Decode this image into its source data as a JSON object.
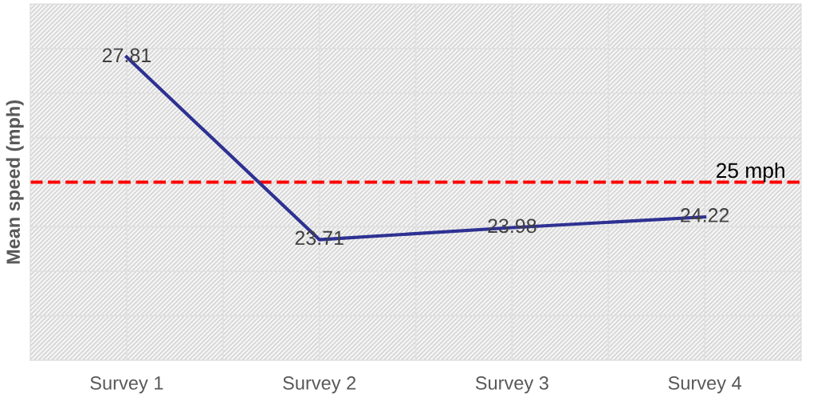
{
  "chart_data": {
    "type": "line",
    "ylabel": "Mean speed (mph)",
    "categories": [
      "Survey 1",
      "Survey 2",
      "Survey 3",
      "Survey 4"
    ],
    "series": [
      {
        "color": "#2e3192",
        "values": [
          27.81,
          23.71,
          23.98,
          24.22
        ]
      }
    ],
    "data_labels": true,
    "ylim": [
      21,
      29
    ],
    "yticks": [
      {
        "value": 21,
        "label": null
      },
      {
        "value": 22,
        "label": null
      },
      {
        "value": 23,
        "label": null
      },
      {
        "value": 24,
        "label": null
      },
      {
        "value": 25,
        "label": null
      },
      {
        "value": 26,
        "label": null
      },
      {
        "value": 27,
        "label": null
      },
      {
        "value": 28,
        "label": null
      },
      {
        "value": 29,
        "label": null
      }
    ],
    "ref_lines": [
      {
        "axis": "y",
        "value": 25,
        "label": "25 mph",
        "color": "#ff0000",
        "line_style": "dashed"
      }
    ],
    "tick_labels": "x",
    "grid": true,
    "legend": false,
    "marker": "none",
    "line_style": "solid"
  }
}
